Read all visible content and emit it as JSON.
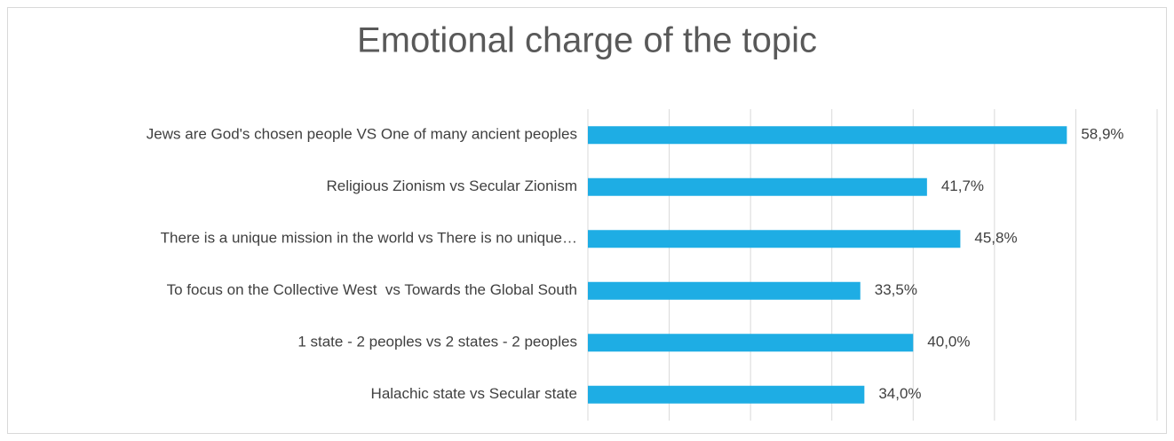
{
  "chart_data": {
    "type": "barh",
    "title": "Emotional charge of the topic",
    "categories": [
      "Jews are God's chosen people VS One of many ancient peoples",
      "Religious Zionism vs Secular Zionism",
      "There is a unique mission in the world vs There is no unique…",
      "To focus on the Collective West  vs Towards the Global South",
      "1 state - 2 peoples vs 2 states - 2 peoples",
      "Halachic state vs Secular state"
    ],
    "values": [
      58.9,
      41.7,
      45.8,
      33.5,
      40.0,
      34.0
    ],
    "value_labels": [
      "58,9%",
      "41,7%",
      "45,8%",
      "33,5%",
      "40,0%",
      "34,0%"
    ],
    "color": "#1eade4",
    "xlim": [
      0,
      70
    ],
    "xticks": [
      0,
      10,
      20,
      30,
      40,
      50,
      60,
      70
    ],
    "grid": true
  }
}
